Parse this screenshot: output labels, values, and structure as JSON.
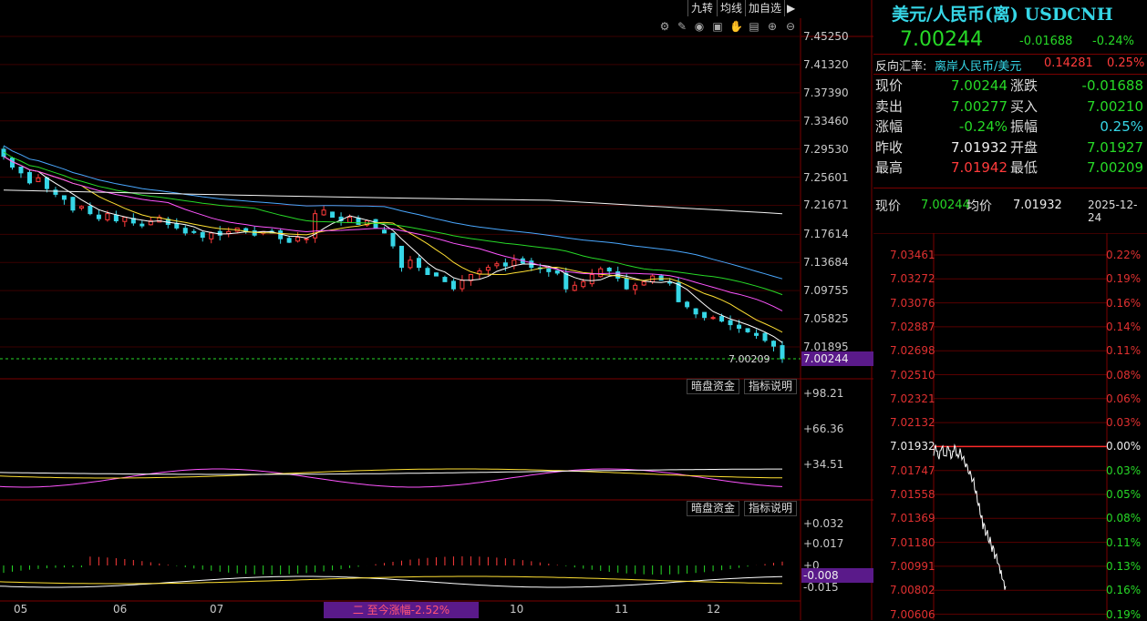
{
  "toolbar": {
    "buttons": [
      "九转",
      "均线",
      "加自选"
    ],
    "panel_toggle_icon": "play-triangle-icon",
    "tools": [
      "settings-icon",
      "draw-pen-icon",
      "eye-icon",
      "basket-icon",
      "hand-icon",
      "lock-icon",
      "zoom-in-icon",
      "zoom-out-icon"
    ]
  },
  "quote": {
    "title": "美元/人民币(离) USDCNH",
    "price": "7.00244",
    "change": "-0.01688",
    "change_pct": "-0.24%",
    "reverse_label": "反向汇率:",
    "reverse_name": "离岸人民币/美元",
    "reverse_value": "0.14281",
    "reverse_pct": "0.25%",
    "rows": [
      {
        "l1": "现价",
        "v1": "7.00244",
        "c1": "g",
        "l2": "涨跌",
        "v2": "-0.01688",
        "c2": "g"
      },
      {
        "l1": "卖出",
        "v1": "7.00277",
        "c1": "g",
        "l2": "买入",
        "v2": "7.00210",
        "c2": "g"
      },
      {
        "l1": "涨幅",
        "v1": "-0.24%",
        "c1": "g",
        "l2": "振幅",
        "v2": "0.25%",
        "c2": "c"
      },
      {
        "l1": "昨收",
        "v1": "7.01932",
        "c1": "w",
        "l2": "开盘",
        "v2": "7.01927",
        "c2": "g"
      },
      {
        "l1": "最高",
        "v1": "7.01942",
        "c1": "r",
        "l2": "最低",
        "v2": "7.00209",
        "c2": "g"
      }
    ]
  },
  "intraday_header": {
    "price_label": "现价",
    "price_value": "7.00244",
    "avg_label": "均价",
    "avg_value": "7.01932",
    "date": "2025-12-24"
  },
  "colors": {
    "bg": "#000000",
    "grid": "#7a0000",
    "up": "#ff3b3b",
    "down": "#36d6e6",
    "ma5": "#ffffff",
    "ma10": "#ffe033",
    "ma20": "#ff55ff",
    "ma30": "#27d927",
    "ma60": "#4aa8ff",
    "ma250": "#f4f4f4",
    "highlight": "#5a1a8a"
  },
  "chart_data": [
    {
      "type": "candlestick",
      "title": "USDCNH daily",
      "y_ticks": [
        "7.45250",
        "7.41320",
        "7.37390",
        "7.33460",
        "7.29530",
        "7.25601",
        "7.21671",
        "7.17614",
        "7.13684",
        "7.09755",
        "7.05825",
        "7.01895"
      ],
      "ylim": [
        7.0,
        7.4525
      ],
      "x_ticks": [
        "05",
        "06",
        "07",
        "10",
        "11",
        "12"
      ],
      "current_price": "7.00244",
      "low_label": "7.00209",
      "closes": [
        7.285,
        7.27,
        7.262,
        7.248,
        7.255,
        7.24,
        7.232,
        7.225,
        7.21,
        7.215,
        7.205,
        7.198,
        7.205,
        7.195,
        7.2,
        7.192,
        7.188,
        7.195,
        7.2,
        7.19,
        7.185,
        7.178,
        7.18,
        7.172,
        7.178,
        7.175,
        7.18,
        7.185,
        7.18,
        7.175,
        7.18,
        7.178,
        7.17,
        7.165,
        7.172,
        7.17,
        7.205,
        7.21,
        7.2,
        7.195,
        7.2,
        7.19,
        7.195,
        7.185,
        7.178,
        7.16,
        7.13,
        7.14,
        7.13,
        7.12,
        7.118,
        7.11,
        7.1,
        7.112,
        7.12,
        7.125,
        7.13,
        7.135,
        7.132,
        7.14,
        7.136,
        7.13,
        7.128,
        7.124,
        7.122,
        7.1,
        7.105,
        7.11,
        7.12,
        7.128,
        7.125,
        7.115,
        7.1,
        7.105,
        7.11,
        7.118,
        7.112,
        7.108,
        7.082,
        7.075,
        7.065,
        7.06,
        7.06,
        7.055,
        7.05,
        7.045,
        7.04,
        7.035,
        7.028,
        7.02,
        7.0024
      ]
    },
    {
      "type": "line",
      "title": "indicator 1",
      "y_ticks": [
        "+98.21",
        "+66.36",
        "+34.51"
      ],
      "buttons": [
        "暗盘资金",
        "指标说明"
      ]
    },
    {
      "type": "bar",
      "title": "MACD",
      "y_ticks": [
        "+0.032",
        "+0.017",
        "+0",
        "-0.008",
        "-0.015"
      ],
      "buttons": [
        "暗盘资金",
        "指标说明"
      ],
      "current_value": "-0.008",
      "range_label": "二 至今涨幅-2.52%"
    },
    {
      "type": "line",
      "title": "intraday",
      "y_ticks": [
        "7.03461",
        "7.03272",
        "7.03076",
        "7.02887",
        "7.02698",
        "7.02510",
        "7.02321",
        "7.02132",
        "7.01932",
        "7.01747",
        "7.01558",
        "7.01369",
        "7.01180",
        "7.00991",
        "7.00802",
        "7.00606"
      ],
      "pct_ticks": [
        "0.22%",
        "0.19%",
        "0.16%",
        "0.14%",
        "0.11%",
        "0.08%",
        "0.06%",
        "0.03%",
        "0.00%",
        "0.03%",
        "0.05%",
        "0.08%",
        "0.11%",
        "0.13%",
        "0.16%",
        "0.19%"
      ],
      "base": 7.01932
    }
  ]
}
